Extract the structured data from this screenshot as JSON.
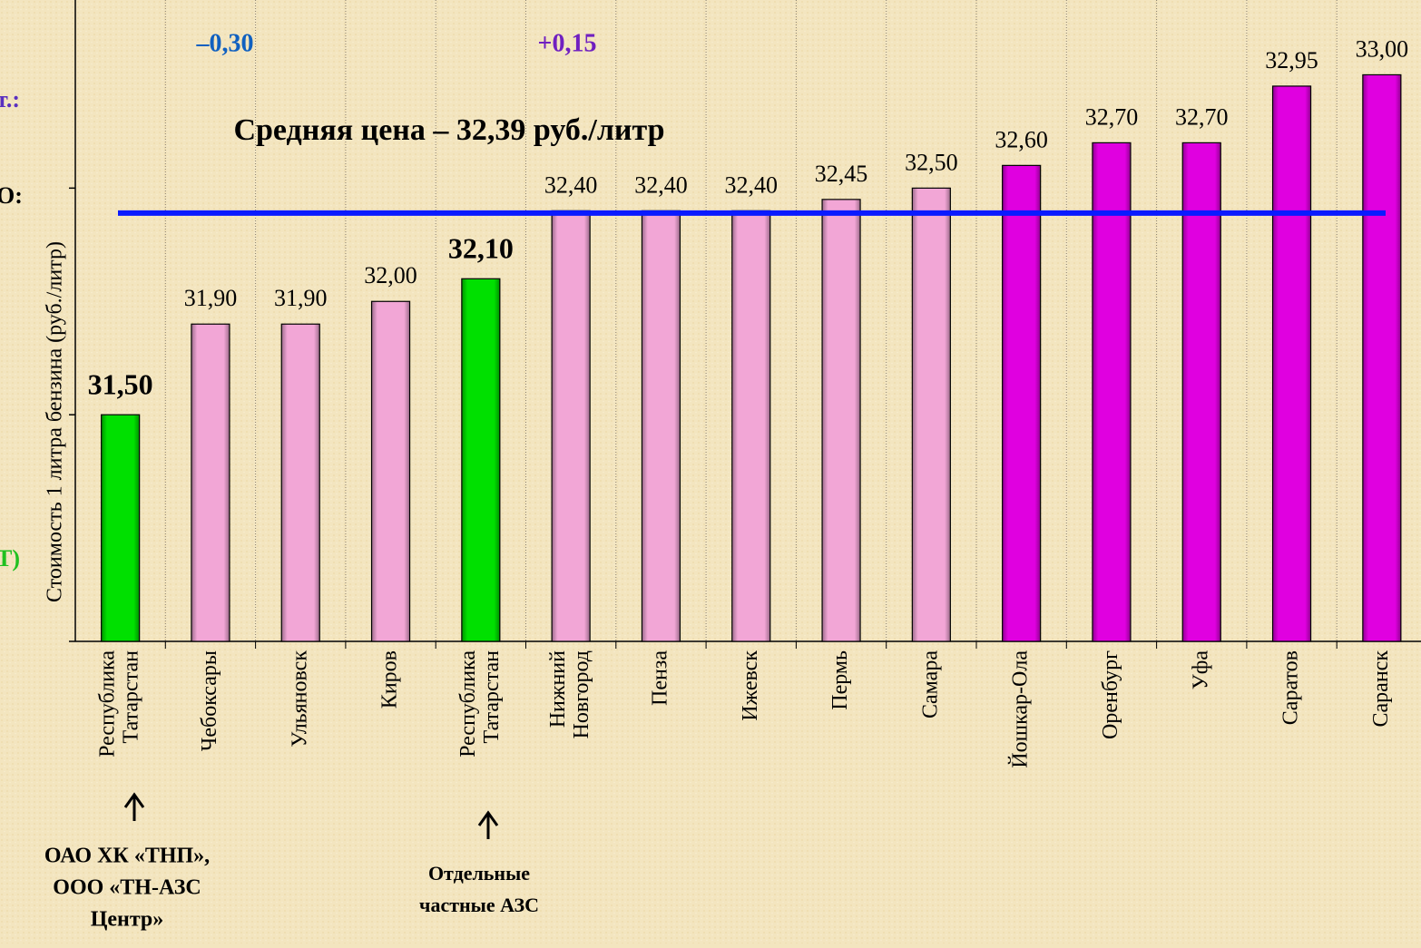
{
  "chart_data": {
    "type": "bar",
    "y_label": "Стоимость 1 литра бензина  (руб./литр)",
    "categories": [
      "Республика Татарстан",
      "Чебоксары",
      "Ульяновск",
      "Киров",
      "Республика Татарстан",
      "Нижний Новгород",
      "Пенза",
      "Ижевск",
      "Пермь",
      "Самара",
      "Йошкар-Ола",
      "Оренбург",
      "Уфа",
      "Саратов",
      "Саранск"
    ],
    "values": [
      31.5,
      31.9,
      31.9,
      32.0,
      32.1,
      32.4,
      32.4,
      32.4,
      32.45,
      32.5,
      32.6,
      32.7,
      32.7,
      32.95,
      33.0
    ],
    "value_labels": [
      "31,50",
      "31,90",
      "31,90",
      "32,00",
      "32,10",
      "32,40",
      "32,40",
      "32,40",
      "32,45",
      "32,50",
      "32,60",
      "32,70",
      "32,70",
      "32,95",
      "33,00"
    ],
    "colors": [
      "#00e000",
      "#f2a6d6",
      "#f2a6d6",
      "#f2a6d6",
      "#00e000",
      "#f2a6d6",
      "#f2a6d6",
      "#f2a6d6",
      "#f2a6d6",
      "#f2a6d6",
      "#e000e0",
      "#e000e0",
      "#e000e0",
      "#e000e0",
      "#e000e0"
    ],
    "bold_label_indices": [
      0,
      4
    ],
    "ylim": [
      30.5,
      33.33
    ],
    "yticks": [
      30.5,
      31.5,
      32.5
    ],
    "average": {
      "value": 32.39,
      "label": "Средняя цена – 32,39 руб./литр",
      "color": "#0a1aff"
    },
    "annotations": [
      {
        "text": "–0,30",
        "color": "#1060c0"
      },
      {
        "text": "+0,15",
        "color": "#7020c0"
      }
    ],
    "footnotes": [
      [
        "ОАО ХК «ТНП»,",
        "ООО «ТН-АЗС",
        "Центр»"
      ],
      [
        "Отдельные",
        "частные АЗС"
      ]
    ],
    "left_fragments": [
      {
        "text": "т.:",
        "color": "#5a30c0"
      },
      {
        "text": "О:",
        "color": "#000000"
      },
      {
        "text": "Т)",
        "color": "#20c020"
      }
    ]
  }
}
